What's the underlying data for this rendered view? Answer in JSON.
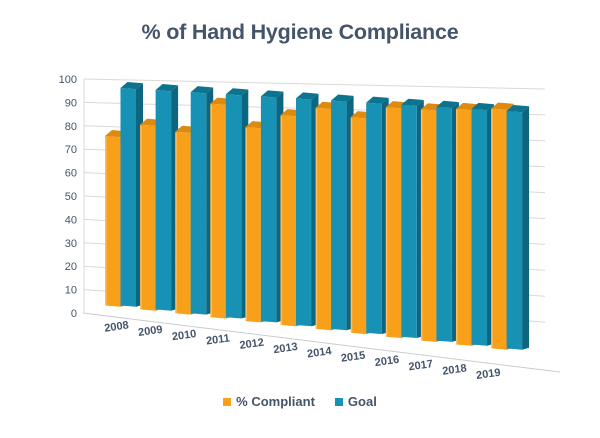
{
  "title": "% of Hand Hygiene Compliance",
  "chart_data": {
    "type": "bar",
    "variant": "3d-clustered-column",
    "title": "% of Hand Hygiene Compliance",
    "categories": [
      "2008",
      "2009",
      "2010",
      "2011",
      "2012",
      "2013",
      "2014",
      "2015",
      "2016",
      "2017",
      "2018",
      "2019"
    ],
    "series": [
      {
        "name": "% Compliant",
        "color": "#F9A01B",
        "color_top": "#DC8B10",
        "color_side": "#C97F0E",
        "values": [
          74,
          80,
          78,
          91,
          82,
          88,
          92,
          89,
          94,
          94,
          95,
          96
        ]
      },
      {
        "name": "Goal",
        "color": "#1791B4",
        "color_top": "#0D7490",
        "color_side": "#0D657F",
        "values": [
          95,
          95,
          95,
          95,
          95,
          95,
          95,
          95,
          95,
          95,
          95,
          95
        ]
      }
    ],
    "xlabel": "",
    "ylabel": "",
    "ylim": [
      0,
      100
    ],
    "ytick_step": 10,
    "grid": true,
    "legend_position": "bottom"
  },
  "palette": {
    "text": "#44546A",
    "gridline": "#D9D9D9",
    "floor_edge": "#C9CCCF",
    "background": "#FFFFFF"
  }
}
